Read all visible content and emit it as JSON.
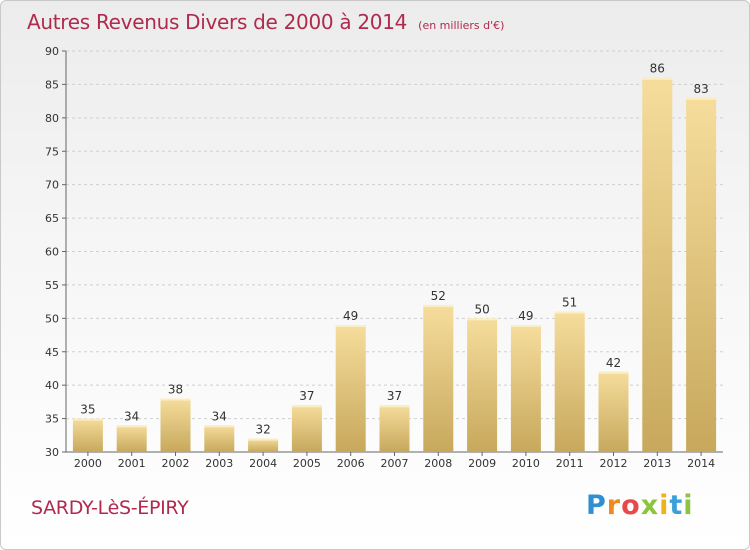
{
  "title": "Autres Revenus Divers de 2000 à 2014",
  "subtitle": "(en milliers d'€)",
  "commune": "SARDY-LèS-ÉPIRY",
  "logo": {
    "letters": [
      "P",
      "r",
      "o",
      "x",
      "i",
      "t",
      "i"
    ],
    "colors": [
      "#2f8fd1",
      "#f08a1c",
      "#e84a4a",
      "#8bc43f",
      "#f0b21c",
      "#3aa0d8",
      "#8bc43f"
    ]
  },
  "colors": {
    "title": "#b02a4e",
    "bar_light": "#f6dd9c",
    "bar_dark": "#c7a85c",
    "grid": "#cfcfcf"
  },
  "chart_data": {
    "type": "bar",
    "categories": [
      "2000",
      "2001",
      "2002",
      "2003",
      "2004",
      "2005",
      "2006",
      "2007",
      "2008",
      "2009",
      "2010",
      "2011",
      "2012",
      "2013",
      "2014"
    ],
    "values": [
      35,
      34,
      38,
      34,
      32,
      37,
      49,
      37,
      52,
      50,
      49,
      51,
      42,
      86,
      83
    ],
    "ylim": [
      30,
      90
    ],
    "yticks": [
      30,
      35,
      40,
      45,
      50,
      55,
      60,
      65,
      70,
      75,
      80,
      85,
      90
    ],
    "grid": "horizontal dashed",
    "data_labels": true
  }
}
